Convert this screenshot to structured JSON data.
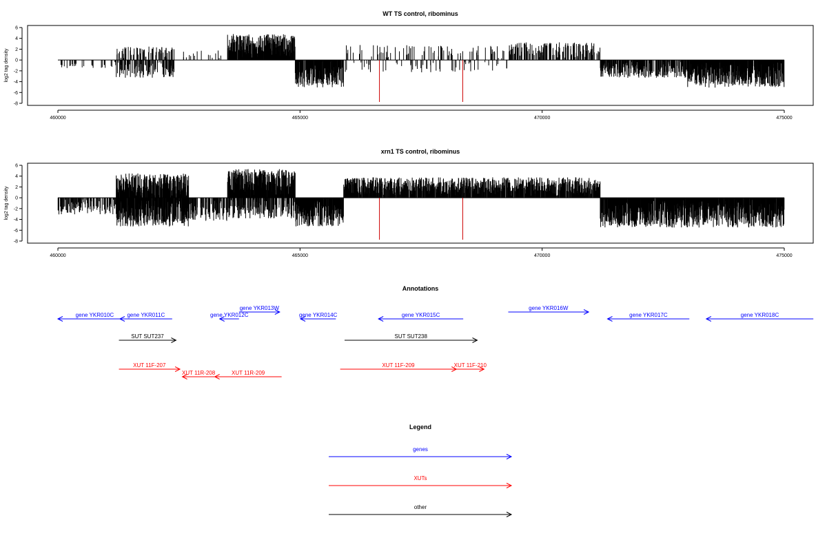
{
  "colors": {
    "gene": "#0000ff",
    "xut": "#ff0000",
    "other": "#000000",
    "bar": "#000000",
    "outlier": "#cc0000"
  },
  "chart_data": [
    {
      "type": "bar",
      "title": "WT TS control, ribominus",
      "ylabel": "log2 tag density",
      "xlim": [
        459900,
        475800
      ],
      "ylim": [
        -8,
        6
      ],
      "xticks": [
        "460000",
        "465000",
        "470000",
        "475000"
      ],
      "yticks": [
        "6",
        "4",
        "2",
        "0",
        "-2",
        "-4",
        "-6",
        "-8"
      ],
      "outliers": [
        {
          "x": 466640,
          "y": -8
        },
        {
          "x": 468360,
          "y": -8
        }
      ],
      "regions": [
        {
          "start": 460000,
          "end": 461200,
          "sign": -1,
          "density": 0.1,
          "amp": 1.2
        },
        {
          "start": 461200,
          "end": 462400,
          "sign": 1,
          "density": 0.25,
          "amp": 2.2
        },
        {
          "start": 461200,
          "end": 462400,
          "sign": -1,
          "density": 0.35,
          "amp": 3.0
        },
        {
          "start": 462400,
          "end": 463500,
          "sign": 1,
          "density": 0.05,
          "amp": 1.5
        },
        {
          "start": 463500,
          "end": 464900,
          "sign": 1,
          "density": 0.85,
          "amp": 4.5
        },
        {
          "start": 464900,
          "end": 465900,
          "sign": -1,
          "density": 0.8,
          "amp": 4.8
        },
        {
          "start": 465900,
          "end": 469300,
          "sign": 1,
          "density": 0.12,
          "amp": 2.5
        },
        {
          "start": 465900,
          "end": 469300,
          "sign": -1,
          "density": 0.08,
          "amp": 2.0
        },
        {
          "start": 469300,
          "end": 471200,
          "sign": 1,
          "density": 0.35,
          "amp": 3.0
        },
        {
          "start": 471200,
          "end": 473000,
          "sign": -1,
          "density": 0.55,
          "amp": 3.0
        },
        {
          "start": 473000,
          "end": 475000,
          "sign": -1,
          "density": 0.9,
          "amp": 4.8
        }
      ]
    },
    {
      "type": "bar",
      "title": "xrn1 TS control, ribominus",
      "ylabel": "log2 tag density",
      "xlim": [
        459900,
        475800
      ],
      "ylim": [
        -8,
        6
      ],
      "xticks": [
        "460000",
        "465000",
        "470000",
        "475000"
      ],
      "yticks": [
        "6",
        "4",
        "2",
        "0",
        "-2",
        "-4",
        "-6",
        "-8"
      ],
      "outliers": [
        {
          "x": 466640,
          "y": -8
        },
        {
          "x": 468360,
          "y": -8
        }
      ],
      "regions": [
        {
          "start": 460000,
          "end": 461200,
          "sign": -1,
          "density": 0.35,
          "amp": 2.8
        },
        {
          "start": 461200,
          "end": 462700,
          "sign": 1,
          "density": 0.85,
          "amp": 4.2
        },
        {
          "start": 461200,
          "end": 462700,
          "sign": -1,
          "density": 0.85,
          "amp": 5.0
        },
        {
          "start": 462700,
          "end": 463500,
          "sign": -1,
          "density": 0.45,
          "amp": 4.0
        },
        {
          "start": 463500,
          "end": 464900,
          "sign": 1,
          "density": 0.95,
          "amp": 5.0
        },
        {
          "start": 463500,
          "end": 464900,
          "sign": -1,
          "density": 0.5,
          "amp": 3.5
        },
        {
          "start": 464900,
          "end": 465900,
          "sign": -1,
          "density": 0.9,
          "amp": 5.0
        },
        {
          "start": 465900,
          "end": 471200,
          "sign": 1,
          "density": 0.8,
          "amp": 3.5
        },
        {
          "start": 471200,
          "end": 475000,
          "sign": -1,
          "density": 0.9,
          "amp": 5.2
        }
      ]
    }
  ],
  "annotations": {
    "title": "Annotations",
    "items": [
      {
        "label": "gene YKR010C",
        "start": 460000,
        "end": 461520,
        "strand": "-",
        "kind": "gene",
        "row": 1
      },
      {
        "label": "gene YKR011C",
        "start": 461280,
        "end": 462360,
        "strand": "-",
        "kind": "gene",
        "row": 1
      },
      {
        "label": "gene YKR012C",
        "start": 463340,
        "end": 463740,
        "strand": "-",
        "kind": "gene",
        "row": 1
      },
      {
        "label": "gene YKR013W",
        "start": 463740,
        "end": 464580,
        "strand": "+",
        "kind": "gene",
        "row": 0
      },
      {
        "label": "gene YKR014C",
        "start": 465010,
        "end": 465740,
        "strand": "-",
        "kind": "gene",
        "row": 1
      },
      {
        "label": "gene YKR015C",
        "start": 466620,
        "end": 468370,
        "strand": "-",
        "kind": "gene",
        "row": 1
      },
      {
        "label": "gene YKR016W",
        "start": 469300,
        "end": 470960,
        "strand": "+",
        "kind": "gene",
        "row": 0
      },
      {
        "label": "gene YKR017C",
        "start": 471350,
        "end": 473040,
        "strand": "-",
        "kind": "gene",
        "row": 1
      },
      {
        "label": "gene YKR018C",
        "start": 473390,
        "end": 475600,
        "strand": "-",
        "kind": "gene",
        "row": 1
      },
      {
        "label": "SUT SUT237",
        "start": 461260,
        "end": 462440,
        "strand": "+",
        "kind": "other",
        "row": 2
      },
      {
        "label": "SUT SUT238",
        "start": 465920,
        "end": 468660,
        "strand": "+",
        "kind": "other",
        "row": 2
      },
      {
        "label": "XUT 11F-207",
        "start": 461260,
        "end": 462520,
        "strand": "+",
        "kind": "xut",
        "row": 3
      },
      {
        "label": "XUT 11F-209",
        "start": 465830,
        "end": 468230,
        "strand": "+",
        "kind": "xut",
        "row": 3
      },
      {
        "label": "XUT 11F-210",
        "start": 468230,
        "end": 468800,
        "strand": "+",
        "kind": "xut",
        "row": 3
      },
      {
        "label": "XUT 11R-208",
        "start": 462570,
        "end": 463240,
        "strand": "-",
        "kind": "xut",
        "row": 4
      },
      {
        "label": "XUT 11R-209",
        "start": 463240,
        "end": 464620,
        "strand": "-",
        "kind": "xut",
        "row": 4
      }
    ]
  },
  "legend": {
    "title": "Legend",
    "items": [
      {
        "label": "genes",
        "kind": "gene"
      },
      {
        "label": "XUTs",
        "kind": "xut"
      },
      {
        "label": "other",
        "kind": "other"
      }
    ]
  }
}
